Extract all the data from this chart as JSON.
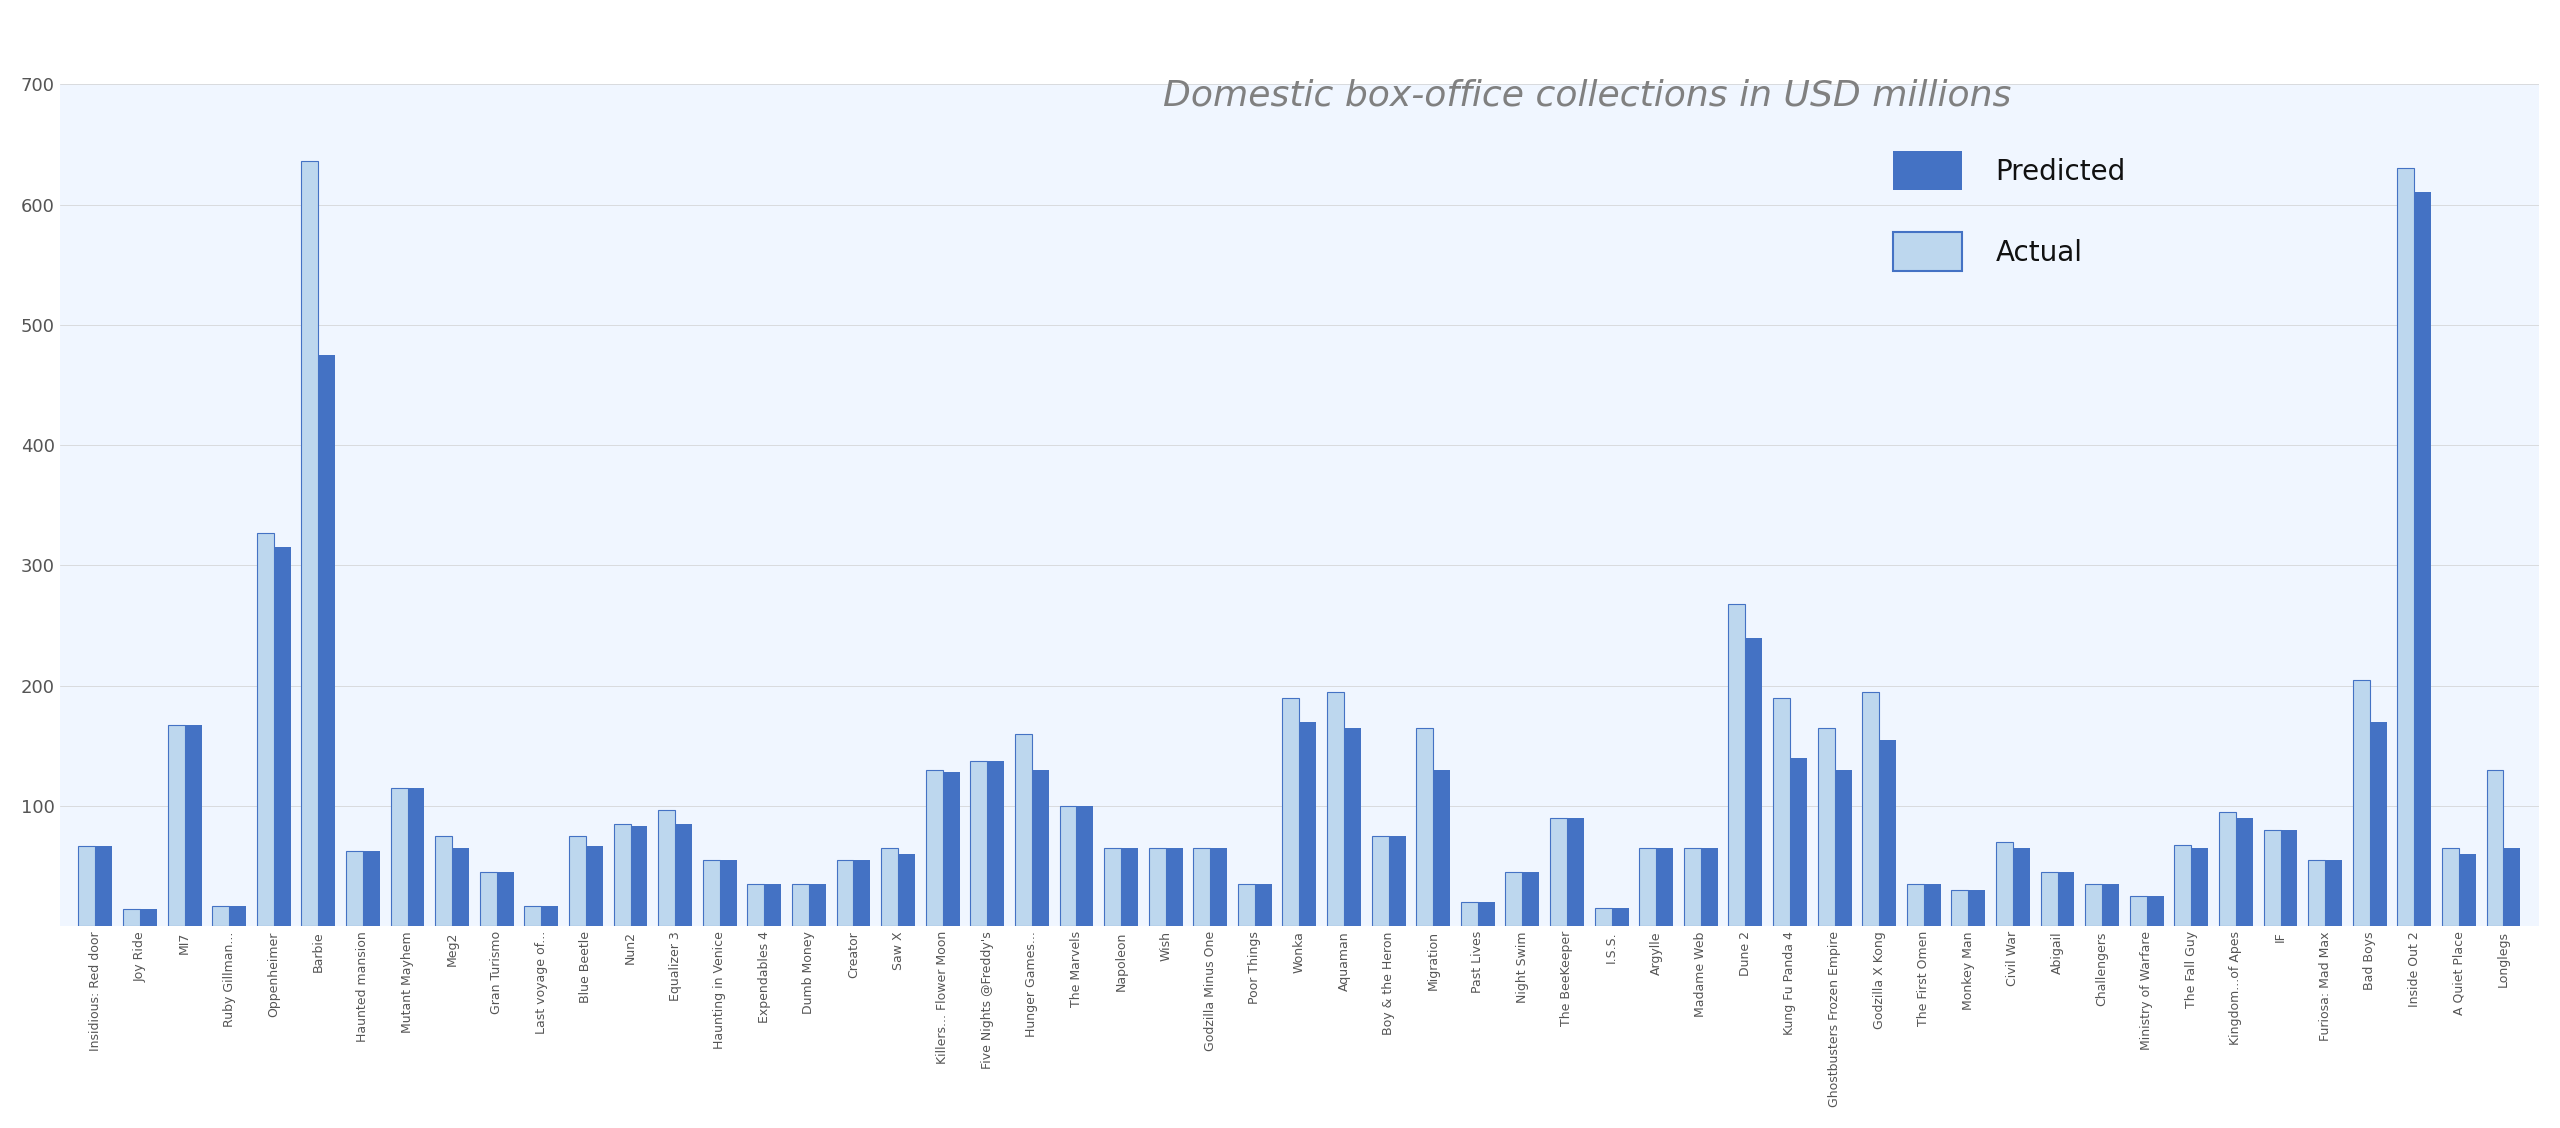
{
  "title": "Domestic box-office collections in USD millions",
  "categories": [
    "Insidious: Red door",
    "Joy Ride",
    "MI7",
    "Ruby Gillman...",
    "Oppenheimer",
    "Barbie",
    "Haunted mansion",
    "Mutant Mayhem",
    "Meg2",
    "Gran Turismo",
    "Last voyage of...",
    "Blue Beetle",
    "Nun2",
    "Equalizer 3",
    "Haunting in Venice",
    "Expendables 4",
    "Dumb Money",
    "Creator",
    "Saw X",
    "Killers... Flower Moon",
    "Five Nights @Freddy's",
    "Hunger Games...",
    "The Marvels",
    "Napoleon",
    "Wish",
    "Godzilla Minus One",
    "Poor Things",
    "Wonka",
    "Aquaman",
    "Boy & the Heron",
    "Migration",
    "Past Lives",
    "Night Swim",
    "The BeeKeeper",
    "I.S.S.",
    "Argylle",
    "Madame Web",
    "Dune 2",
    "Kung Fu Panda 4",
    "Ghostbusters Frozen Empire",
    "Godzilla X Kong",
    "The First Omen",
    "Monkey Man",
    "Civil War",
    "Abigail",
    "Challengers",
    "Ministry of Warfare",
    "The Fall Guy",
    "Kingdom...of Apes",
    "IF",
    "Furiosa: Mad Max",
    "Bad Boys",
    "Inside Out 2",
    "A Quiet Place",
    "Longlegs"
  ],
  "predicted": [
    67,
    14,
    167,
    17,
    315,
    475,
    63,
    115,
    65,
    45,
    17,
    67,
    83,
    85,
    55,
    35,
    35,
    55,
    60,
    128,
    137,
    130,
    100,
    65,
    65,
    65,
    35,
    170,
    165,
    75,
    130,
    20,
    45,
    90,
    15,
    65,
    65,
    240,
    140,
    130,
    155,
    35,
    30,
    65,
    45,
    35,
    25,
    65,
    90,
    80,
    55,
    170,
    610,
    60,
    65
  ],
  "actual": [
    67,
    14,
    167,
    17,
    327,
    636,
    63,
    115,
    75,
    45,
    17,
    75,
    85,
    97,
    55,
    35,
    35,
    55,
    65,
    130,
    137,
    160,
    100,
    65,
    65,
    65,
    35,
    190,
    195,
    75,
    165,
    20,
    45,
    90,
    15,
    65,
    65,
    268,
    190,
    165,
    195,
    35,
    30,
    70,
    45,
    35,
    25,
    68,
    95,
    80,
    55,
    205,
    630,
    65,
    130
  ],
  "predicted_color": "#4472C4",
  "actual_color": "#BDD7EE",
  "actual_edge_color": "#4472C4",
  "background_color": "#FFFFFF",
  "ylim": [
    0,
    700
  ],
  "yticks": [
    100,
    200,
    300,
    400,
    500,
    600,
    700
  ],
  "title_fontsize": 26,
  "title_color": "#808080",
  "legend_fontsize": 20,
  "tick_label_fontsize": 9,
  "ytick_fontsize": 13
}
